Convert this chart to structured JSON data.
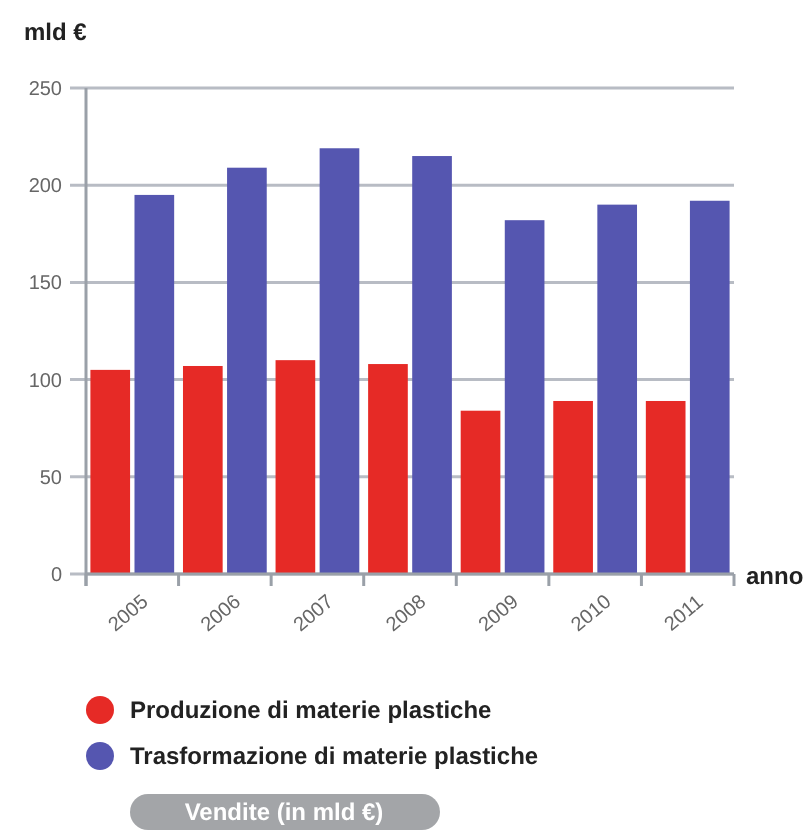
{
  "chart_data": {
    "type": "bar",
    "ylabel": "mld €",
    "xlabel": "anno",
    "categories": [
      "2005",
      "2006",
      "2007",
      "2008",
      "2009",
      "2010",
      "2011"
    ],
    "series": [
      {
        "name": "Produzione di materie plastiche",
        "color": "#e62a26",
        "values": [
          105,
          107,
          110,
          108,
          84,
          89,
          89
        ]
      },
      {
        "name": "Trasformazione di materie plastiche",
        "color": "#5556b0",
        "values": [
          195,
          209,
          219,
          215,
          182,
          190,
          192
        ]
      }
    ],
    "ylim": [
      0,
      250
    ],
    "yticks": [
      0,
      50,
      100,
      150,
      200,
      250
    ],
    "grid": "y",
    "legend": "bottom",
    "annotations": [
      "Vendite (in mld €)"
    ]
  }
}
